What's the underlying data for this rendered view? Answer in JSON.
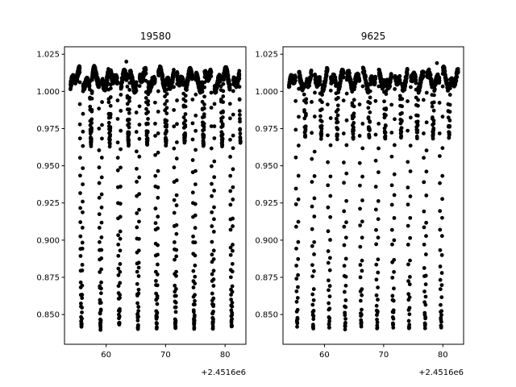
{
  "chart_data": [
    {
      "type": "scatter",
      "title": "19580",
      "xlabel": "",
      "ylabel": "",
      "x_offset_label": "+2.4516e6",
      "xlim": [
        53.0,
        83.5
      ],
      "ylim": [
        0.83,
        1.03
      ],
      "xticks": [
        60,
        70,
        80
      ],
      "xtick_labels": [
        "60",
        "70",
        "80"
      ],
      "yticks": [
        0.85,
        0.875,
        0.9,
        0.925,
        0.95,
        0.975,
        1.0,
        1.025
      ],
      "ytick_labels": [
        "0.850",
        "0.875",
        "0.900",
        "0.925",
        "0.950",
        "0.975",
        "1.000",
        "1.025"
      ],
      "marker_color": "#000000",
      "grid": false,
      "series": [
        {
          "x_range": [
            54.0,
            82.6
          ],
          "baseline": 1.008,
          "primary_eclipses": [
            55.85,
            59.05,
            62.2,
            65.35,
            68.5,
            71.65,
            74.8,
            77.95,
            81.1
          ],
          "primary_depth_min": 0.842,
          "secondary_eclipses": [
            57.45,
            60.6,
            63.75,
            66.9,
            70.05,
            73.2,
            76.35,
            79.5,
            82.6
          ],
          "secondary_depth_min": 0.965,
          "outlier_point": [
            63.4,
            1.02
          ]
        }
      ]
    },
    {
      "type": "scatter",
      "title": "9625",
      "xlabel": "",
      "ylabel": "",
      "x_offset_label": "+2.4516e6",
      "xlim": [
        53.0,
        83.5
      ],
      "ylim": [
        0.83,
        1.03
      ],
      "xticks": [
        60,
        70,
        80
      ],
      "xtick_labels": [
        "60",
        "70",
        "80"
      ],
      "yticks": [
        0.85,
        0.875,
        0.9,
        0.925,
        0.95,
        0.975,
        1.0,
        1.025
      ],
      "ytick_labels": [
        "0.850",
        "0.875",
        "0.900",
        "0.925",
        "0.950",
        "0.975",
        "1.000",
        "1.025"
      ],
      "marker_color": "#000000",
      "grid": false,
      "series": [
        {
          "x_range": [
            54.0,
            82.6
          ],
          "baseline": 1.008,
          "primary_eclipses": [
            55.4,
            58.1,
            60.8,
            63.5,
            66.2,
            68.9,
            71.6,
            74.3,
            77.0,
            79.7
          ],
          "primary_depth_min": 0.842,
          "secondary_eclipses": [
            56.75,
            59.45,
            62.15,
            64.85,
            67.55,
            70.25,
            72.95,
            75.65,
            78.35,
            81.05
          ],
          "secondary_depth_min": 0.97,
          "outlier_point": [
            79.0,
            1.019
          ]
        }
      ]
    }
  ]
}
